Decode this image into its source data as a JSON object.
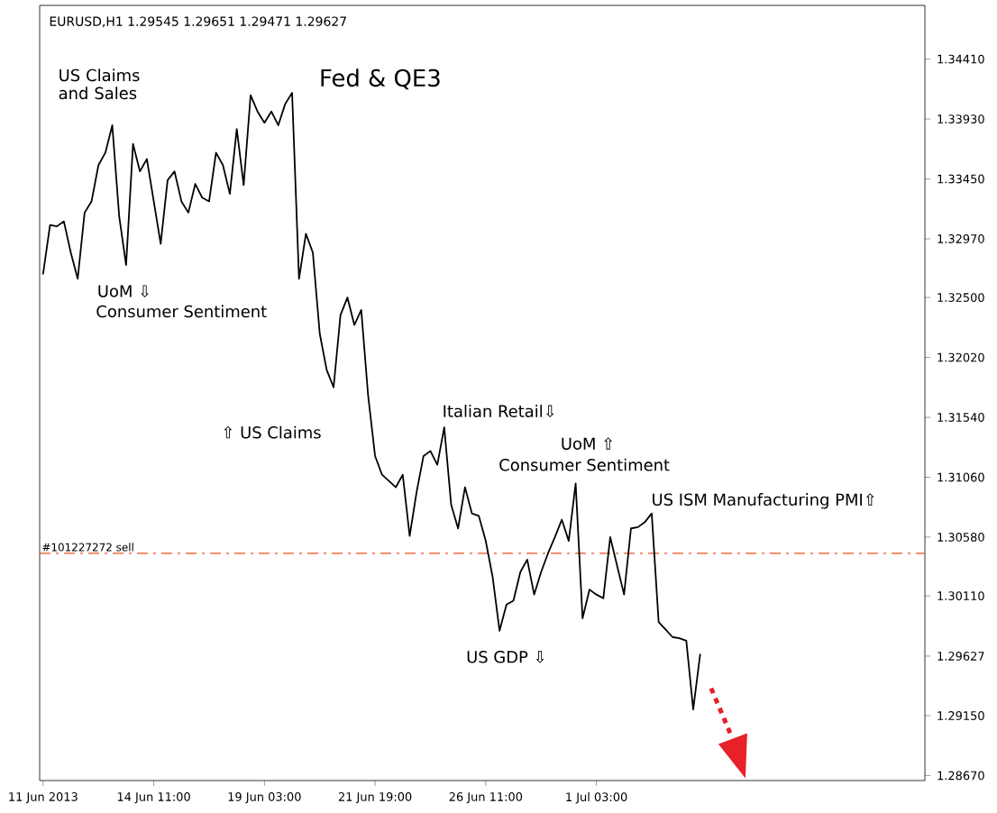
{
  "chart_data": {
    "type": "line",
    "title": "EURUSD,H1  1.29545 1.29651 1.29471 1.29627",
    "categories": [
      "11 Jun 2013",
      null,
      null,
      null,
      null,
      null,
      null,
      null,
      null,
      null,
      null,
      null,
      null,
      null,
      null,
      null,
      "14 Jun 11:00",
      null,
      null,
      null,
      null,
      null,
      null,
      null,
      null,
      null,
      null,
      null,
      null,
      null,
      null,
      null,
      "19 Jun 03:00",
      null,
      null,
      null,
      null,
      null,
      null,
      null,
      null,
      null,
      null,
      null,
      null,
      null,
      null,
      null,
      "21 Jun 19:00",
      null,
      null,
      null,
      null,
      null,
      null,
      null,
      null,
      null,
      null,
      null,
      null,
      null,
      null,
      null,
      "26 Jun 11:00",
      null,
      null,
      null,
      null,
      null,
      null,
      null,
      null,
      null,
      null,
      null,
      null,
      null,
      null,
      null,
      "1 Jul 03:00",
      null,
      null,
      null,
      null,
      null,
      null,
      null,
      null,
      null,
      null,
      null,
      null,
      null,
      null,
      null,
      null,
      null,
      null,
      null,
      null,
      null,
      null,
      null,
      null,
      null,
      null,
      null,
      null,
      null,
      null,
      null,
      null,
      null,
      null,
      null,
      null,
      null,
      null,
      null,
      null,
      null,
      null,
      null,
      null,
      null,
      null,
      null
    ],
    "ylim": [
      1.2863,
      1.3484
    ],
    "yticks": [
      {
        "value": 1.3441,
        "label": "1.34410"
      },
      {
        "value": 1.3393,
        "label": "1.33930"
      },
      {
        "value": 1.3345,
        "label": "1.33450"
      },
      {
        "value": 1.3297,
        "label": "1.32970"
      },
      {
        "value": 1.325,
        "label": "1.32500"
      },
      {
        "value": 1.3202,
        "label": "1.32020"
      },
      {
        "value": 1.3154,
        "label": "1.31540"
      },
      {
        "value": 1.3106,
        "label": "1.31060"
      },
      {
        "value": 1.3058,
        "label": "1.30580"
      },
      {
        "value": 1.3011,
        "label": "1.30110"
      },
      {
        "value": 1.29627,
        "label": "1.29627"
      },
      {
        "value": 1.2915,
        "label": "1.29150"
      },
      {
        "value": 1.2867,
        "label": "1.28670"
      }
    ],
    "series": [
      {
        "color": "#000000",
        "values": [
          1.3269,
          1.3308,
          1.3307,
          1.3311,
          1.3286,
          1.3265,
          1.3318,
          1.3327,
          1.3356,
          1.3366,
          1.3388,
          1.3315,
          1.3276,
          1.3373,
          1.3351,
          1.3361,
          1.3327,
          1.3293,
          1.3344,
          1.3351,
          1.3327,
          1.3318,
          1.3341,
          1.333,
          1.3327,
          1.3366,
          1.3356,
          1.3333,
          1.3385,
          1.334,
          1.3412,
          1.3399,
          1.339,
          1.3399,
          1.3388,
          1.3405,
          1.3414,
          1.3265,
          1.3301,
          1.3286,
          1.3221,
          1.3192,
          1.3178,
          1.3236,
          1.325,
          1.3228,
          1.324,
          1.3171,
          1.3123,
          1.3108,
          1.3103,
          1.3098,
          1.3108,
          1.3059,
          1.3094,
          1.3123,
          1.3127,
          1.3116,
          1.3146,
          1.3084,
          1.3065,
          1.3098,
          1.3077,
          1.3075,
          1.3055,
          1.3026,
          1.2983,
          1.3004,
          1.3007,
          1.303,
          1.304,
          1.3012,
          1.303,
          1.3045,
          1.3058,
          1.3072,
          1.3055,
          1.3101,
          1.2993,
          1.3016,
          1.3012,
          1.3009,
          1.3058,
          1.3035,
          1.3012,
          1.3065,
          1.3066,
          1.307,
          1.3077,
          1.299,
          1.2984,
          1.2978,
          1.2977,
          1.2975,
          1.292,
          1.2964,
          null,
          null,
          null,
          null,
          null,
          null,
          null,
          null,
          null,
          null,
          null,
          null,
          null,
          null,
          null,
          null,
          null,
          null,
          null,
          null,
          null,
          null,
          null,
          null,
          null,
          null,
          null,
          null,
          null,
          null,
          null,
          null
        ]
      }
    ],
    "ref_lines": [
      {
        "axis": "y",
        "value": 1.3045,
        "label": "#101227272 sell",
        "color": "#e8501e",
        "line_style": "dashdot"
      }
    ],
    "annotations": [
      "US Claims and Sales",
      "Fed & QE3",
      "UoM ⇩",
      "Consumer Sentiment",
      "⇧ US Claims",
      "Italian Retail⇩",
      "UoM ⇧",
      "Consumer Sentiment",
      "US ISM Manufacturing PMI⇧",
      "US GDP ⇩"
    ]
  }
}
